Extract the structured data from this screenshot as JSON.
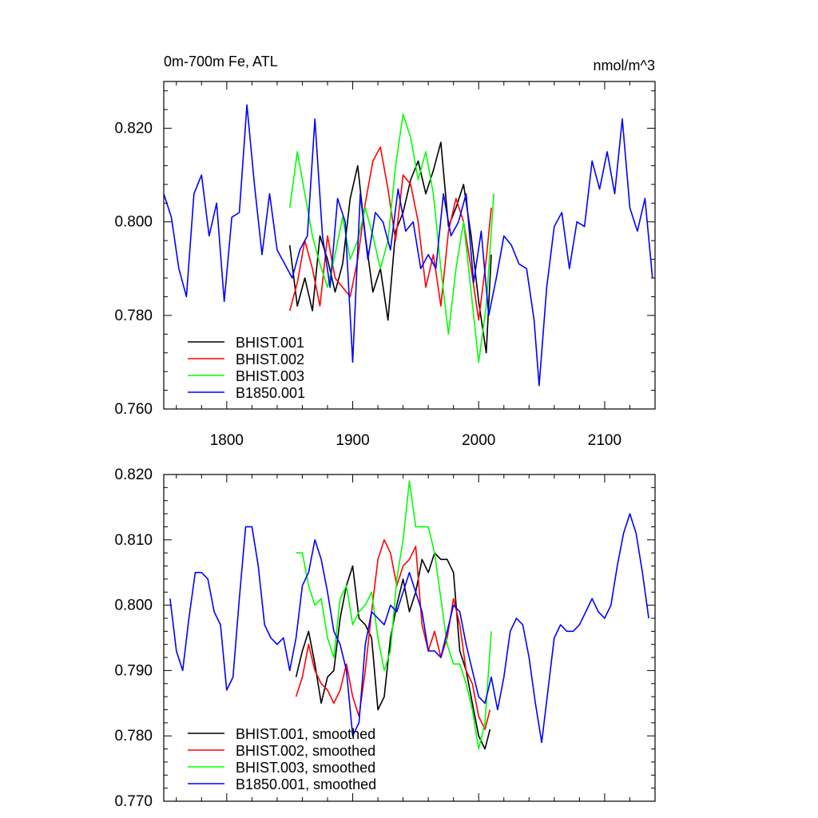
{
  "chart_data": [
    {
      "type": "line",
      "title_left": "0m-700m Fe, ATL",
      "title_right": "nmol/m^3",
      "xlabel": "",
      "ylabel": "",
      "xlim": [
        1750,
        2140
      ],
      "ylim": [
        0.76,
        0.83
      ],
      "xticks": [
        1800,
        1900,
        2000,
        2100
      ],
      "xtick_labels": [
        "1800",
        "1900",
        "2000",
        "2100"
      ],
      "yticks": [
        0.76,
        0.78,
        0.8,
        0.82
      ],
      "ytick_labels": [
        "0.760",
        "0.780",
        "0.800",
        "0.820"
      ],
      "grid": false,
      "legend_position": "bottom-left",
      "series": [
        {
          "name": "BHIST.001",
          "color": "#000000",
          "x": [
            1850,
            1856,
            1862,
            1868,
            1874,
            1880,
            1886,
            1892,
            1898,
            1904,
            1910,
            1916,
            1922,
            1928,
            1934,
            1940,
            1946,
            1952,
            1958,
            1964,
            1970,
            1976,
            1982,
            1988,
            1994,
            2000,
            2006,
            2010
          ],
          "y": [
            0.795,
            0.782,
            0.788,
            0.781,
            0.797,
            0.792,
            0.785,
            0.791,
            0.805,
            0.812,
            0.797,
            0.785,
            0.79,
            0.779,
            0.798,
            0.802,
            0.809,
            0.813,
            0.806,
            0.811,
            0.817,
            0.799,
            0.803,
            0.808,
            0.797,
            0.783,
            0.772,
            0.793
          ]
        },
        {
          "name": "BHIST.002",
          "color": "#ff0000",
          "x": [
            1850,
            1856,
            1862,
            1868,
            1874,
            1880,
            1886,
            1892,
            1898,
            1904,
            1910,
            1916,
            1922,
            1928,
            1934,
            1940,
            1946,
            1952,
            1958,
            1964,
            1970,
            1976,
            1982,
            1988,
            1994,
            2000,
            2006,
            2010
          ],
          "y": [
            0.781,
            0.787,
            0.796,
            0.79,
            0.782,
            0.797,
            0.788,
            0.786,
            0.784,
            0.792,
            0.804,
            0.813,
            0.816,
            0.807,
            0.796,
            0.81,
            0.808,
            0.8,
            0.786,
            0.793,
            0.782,
            0.798,
            0.805,
            0.8,
            0.79,
            0.779,
            0.792,
            0.803
          ]
        },
        {
          "name": "BHIST.003",
          "color": "#00ff00",
          "x": [
            1850,
            1856,
            1862,
            1868,
            1874,
            1880,
            1886,
            1892,
            1898,
            1904,
            1910,
            1916,
            1922,
            1928,
            1934,
            1940,
            1946,
            1952,
            1958,
            1964,
            1970,
            1976,
            1982,
            1988,
            1994,
            2000,
            2006,
            2012
          ],
          "y": [
            0.803,
            0.815,
            0.806,
            0.797,
            0.791,
            0.786,
            0.793,
            0.801,
            0.792,
            0.796,
            0.803,
            0.797,
            0.79,
            0.796,
            0.812,
            0.823,
            0.818,
            0.809,
            0.815,
            0.806,
            0.79,
            0.776,
            0.79,
            0.8,
            0.785,
            0.77,
            0.782,
            0.806
          ]
        },
        {
          "name": "B1850.001",
          "color": "#0000ff",
          "x": [
            1750,
            1756,
            1762,
            1768,
            1774,
            1780,
            1786,
            1792,
            1798,
            1804,
            1810,
            1816,
            1822,
            1828,
            1834,
            1840,
            1846,
            1852,
            1858,
            1864,
            1870,
            1876,
            1882,
            1888,
            1894,
            1900,
            1906,
            1912,
            1918,
            1924,
            1930,
            1936,
            1942,
            1948,
            1954,
            1960,
            1966,
            1972,
            1978,
            1984,
            1990,
            1996,
            2002,
            2008,
            2014,
            2020,
            2026,
            2032,
            2038,
            2044,
            2048,
            2054,
            2060,
            2066,
            2072,
            2078,
            2084,
            2090,
            2096,
            2102,
            2108,
            2114,
            2120,
            2126,
            2132,
            2138
          ],
          "y": [
            0.806,
            0.801,
            0.79,
            0.784,
            0.806,
            0.81,
            0.797,
            0.804,
            0.783,
            0.801,
            0.802,
            0.825,
            0.808,
            0.793,
            0.806,
            0.794,
            0.791,
            0.788,
            0.794,
            0.797,
            0.822,
            0.797,
            0.786,
            0.805,
            0.8,
            0.77,
            0.806,
            0.792,
            0.802,
            0.8,
            0.794,
            0.807,
            0.798,
            0.8,
            0.79,
            0.793,
            0.79,
            0.806,
            0.797,
            0.8,
            0.806,
            0.787,
            0.798,
            0.78,
            0.788,
            0.797,
            0.795,
            0.791,
            0.79,
            0.779,
            0.765,
            0.786,
            0.799,
            0.802,
            0.79,
            0.8,
            0.799,
            0.813,
            0.807,
            0.815,
            0.806,
            0.822,
            0.803,
            0.798,
            0.805,
            0.788
          ]
        }
      ]
    },
    {
      "type": "line",
      "title_left": "",
      "title_right": "",
      "xlabel": "",
      "ylabel": "",
      "xlim": [
        1750,
        2140
      ],
      "ylim": [
        0.77,
        0.82
      ],
      "xticks": [
        1800,
        1900,
        2000,
        2100
      ],
      "xtick_labels": [],
      "yticks": [
        0.77,
        0.78,
        0.79,
        0.8,
        0.81,
        0.82
      ],
      "ytick_labels": [
        "0.770",
        "0.780",
        "0.790",
        "0.800",
        "0.810",
        "0.820"
      ],
      "grid": false,
      "legend_position": "bottom-left",
      "series": [
        {
          "name": "BHIST.001, smoothed",
          "color": "#000000",
          "x": [
            1855,
            1860,
            1865,
            1870,
            1875,
            1880,
            1885,
            1890,
            1895,
            1900,
            1905,
            1910,
            1915,
            1920,
            1925,
            1930,
            1935,
            1940,
            1945,
            1950,
            1955,
            1960,
            1965,
            1970,
            1975,
            1980,
            1985,
            1990,
            1995,
            2000,
            2005,
            2009
          ],
          "y": [
            0.789,
            0.793,
            0.796,
            0.791,
            0.785,
            0.789,
            0.79,
            0.798,
            0.803,
            0.806,
            0.798,
            0.797,
            0.795,
            0.784,
            0.786,
            0.795,
            0.8,
            0.804,
            0.799,
            0.802,
            0.807,
            0.805,
            0.808,
            0.807,
            0.807,
            0.805,
            0.793,
            0.79,
            0.785,
            0.78,
            0.778,
            0.781
          ]
        },
        {
          "name": "BHIST.002, smoothed",
          "color": "#ff0000",
          "x": [
            1855,
            1860,
            1865,
            1870,
            1875,
            1880,
            1885,
            1890,
            1895,
            1900,
            1905,
            1910,
            1915,
            1920,
            1925,
            1930,
            1935,
            1940,
            1945,
            1950,
            1955,
            1960,
            1965,
            1970,
            1975,
            1980,
            1985,
            1990,
            1995,
            2000,
            2005,
            2009
          ],
          "y": [
            0.786,
            0.789,
            0.794,
            0.79,
            0.788,
            0.787,
            0.785,
            0.787,
            0.791,
            0.786,
            0.783,
            0.79,
            0.799,
            0.807,
            0.81,
            0.808,
            0.803,
            0.806,
            0.807,
            0.809,
            0.797,
            0.793,
            0.796,
            0.792,
            0.795,
            0.801,
            0.797,
            0.79,
            0.788,
            0.783,
            0.781,
            0.784
          ]
        },
        {
          "name": "BHIST.003, smoothed",
          "color": "#00ff00",
          "x": [
            1855,
            1860,
            1865,
            1870,
            1875,
            1880,
            1885,
            1890,
            1895,
            1900,
            1905,
            1910,
            1915,
            1920,
            1925,
            1930,
            1935,
            1940,
            1945,
            1950,
            1955,
            1960,
            1965,
            1970,
            1975,
            1980,
            1985,
            1990,
            1995,
            2000,
            2005,
            2010
          ],
          "y": [
            0.808,
            0.808,
            0.803,
            0.8,
            0.801,
            0.795,
            0.792,
            0.801,
            0.803,
            0.797,
            0.799,
            0.8,
            0.802,
            0.795,
            0.79,
            0.793,
            0.804,
            0.81,
            0.819,
            0.812,
            0.812,
            0.812,
            0.808,
            0.801,
            0.794,
            0.791,
            0.791,
            0.788,
            0.784,
            0.778,
            0.782,
            0.796
          ]
        },
        {
          "name": "B1850.001, smoothed",
          "color": "#0000ff",
          "x": [
            1755,
            1760,
            1765,
            1770,
            1775,
            1780,
            1785,
            1790,
            1795,
            1800,
            1805,
            1810,
            1815,
            1820,
            1825,
            1830,
            1835,
            1840,
            1845,
            1850,
            1855,
            1860,
            1865,
            1870,
            1875,
            1880,
            1885,
            1890,
            1895,
            1900,
            1905,
            1910,
            1915,
            1920,
            1925,
            1930,
            1935,
            1940,
            1945,
            1950,
            1955,
            1960,
            1965,
            1970,
            1975,
            1980,
            1985,
            1990,
            1995,
            2000,
            2005,
            2010,
            2015,
            2020,
            2025,
            2030,
            2035,
            2040,
            2045,
            2050,
            2055,
            2060,
            2065,
            2070,
            2075,
            2080,
            2085,
            2090,
            2095,
            2100,
            2105,
            2110,
            2115,
            2120,
            2125,
            2130,
            2135
          ],
          "y": [
            0.801,
            0.793,
            0.79,
            0.798,
            0.805,
            0.805,
            0.804,
            0.799,
            0.797,
            0.787,
            0.789,
            0.801,
            0.812,
            0.812,
            0.806,
            0.797,
            0.795,
            0.794,
            0.795,
            0.79,
            0.795,
            0.803,
            0.805,
            0.81,
            0.807,
            0.802,
            0.796,
            0.794,
            0.79,
            0.78,
            0.782,
            0.794,
            0.799,
            0.798,
            0.797,
            0.8,
            0.799,
            0.802,
            0.805,
            0.802,
            0.799,
            0.793,
            0.793,
            0.792,
            0.796,
            0.8,
            0.799,
            0.794,
            0.79,
            0.786,
            0.785,
            0.789,
            0.784,
            0.789,
            0.796,
            0.798,
            0.797,
            0.792,
            0.785,
            0.779,
            0.787,
            0.795,
            0.797,
            0.796,
            0.796,
            0.797,
            0.799,
            0.801,
            0.799,
            0.798,
            0.8,
            0.806,
            0.811,
            0.814,
            0.811,
            0.805,
            0.798
          ]
        }
      ]
    }
  ]
}
